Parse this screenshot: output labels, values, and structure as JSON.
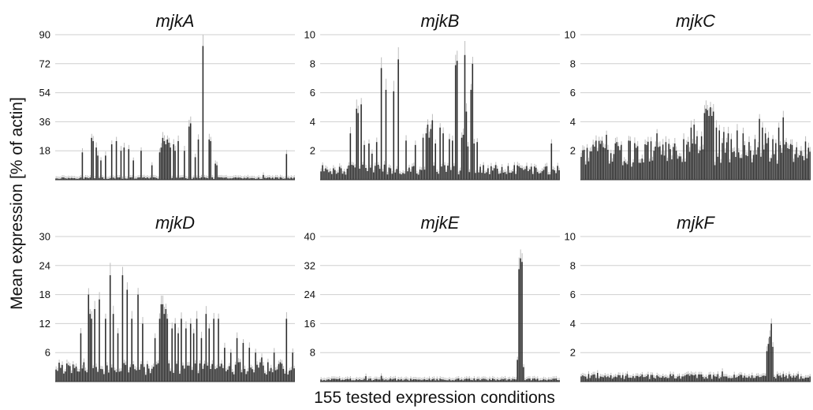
{
  "figure": {
    "ylabel": "Mean expression [% of actin]",
    "xlabel": "155 tested expression conditions",
    "n_conditions": 155
  },
  "colors": {
    "bar": "#2b2b2b",
    "errorbar": "#bdbdbd",
    "grid": "#cfcfcf"
  },
  "chart_data": [
    {
      "type": "bar",
      "title": "mjkA",
      "ylim": [
        0,
        90
      ],
      "yticks": [
        18,
        36,
        54,
        72,
        90
      ],
      "grid": true,
      "peaks": [
        {
          "at": 18,
          "value": 17
        },
        {
          "at": 24,
          "value": 26
        },
        {
          "at": 25,
          "value": 24
        },
        {
          "at": 27,
          "value": 20
        },
        {
          "at": 28,
          "value": 15
        },
        {
          "at": 30,
          "value": 12
        },
        {
          "at": 33,
          "value": 15
        },
        {
          "at": 37,
          "value": 22
        },
        {
          "at": 40,
          "value": 24
        },
        {
          "at": 43,
          "value": 18
        },
        {
          "at": 45,
          "value": 20
        },
        {
          "at": 48,
          "value": 19
        },
        {
          "at": 51,
          "value": 12
        },
        {
          "at": 56,
          "value": 18
        },
        {
          "at": 63,
          "value": 9
        },
        {
          "at": 68,
          "value": 17
        },
        {
          "at": 69,
          "value": 20
        },
        {
          "at": 70,
          "value": 26
        },
        {
          "at": 71,
          "value": 24
        },
        {
          "at": 72,
          "value": 22
        },
        {
          "at": 73,
          "value": 25
        },
        {
          "at": 74,
          "value": 23
        },
        {
          "at": 75,
          "value": 20
        },
        {
          "at": 77,
          "value": 22
        },
        {
          "at": 78,
          "value": 18
        },
        {
          "at": 80,
          "value": 24
        },
        {
          "at": 84,
          "value": 18
        },
        {
          "at": 87,
          "value": 33
        },
        {
          "at": 88,
          "value": 35
        },
        {
          "at": 91,
          "value": 14
        },
        {
          "at": 93,
          "value": 25
        },
        {
          "at": 96,
          "value": 83
        },
        {
          "at": 100,
          "value": 25
        },
        {
          "at": 101,
          "value": 24
        },
        {
          "at": 104,
          "value": 10
        },
        {
          "at": 105,
          "value": 9
        },
        {
          "at": 135,
          "value": 3
        },
        {
          "at": 150,
          "value": 16
        }
      ]
    },
    {
      "type": "bar",
      "title": "mjkB",
      "ylim": [
        0,
        10
      ],
      "yticks": [
        2,
        4,
        6,
        8,
        10
      ],
      "grid": true,
      "peaks": [
        {
          "at": 20,
          "value": 3.2
        },
        {
          "at": 24,
          "value": 4.9
        },
        {
          "at": 25,
          "value": 4.6
        },
        {
          "at": 27,
          "value": 5.2
        },
        {
          "at": 29,
          "value": 2.4
        },
        {
          "at": 32,
          "value": 2.5
        },
        {
          "at": 34,
          "value": 1.8
        },
        {
          "at": 37,
          "value": 2.6
        },
        {
          "at": 40,
          "value": 7.7
        },
        {
          "at": 43,
          "value": 6.2
        },
        {
          "at": 48,
          "value": 6.1
        },
        {
          "at": 51,
          "value": 8.3
        },
        {
          "at": 56,
          "value": 2.7
        },
        {
          "at": 62,
          "value": 2.4
        },
        {
          "at": 67,
          "value": 2.9
        },
        {
          "at": 69,
          "value": 3.2
        },
        {
          "at": 70,
          "value": 3.8
        },
        {
          "at": 71,
          "value": 2.9
        },
        {
          "at": 72,
          "value": 3.5
        },
        {
          "at": 73,
          "value": 4.1
        },
        {
          "at": 75,
          "value": 2.5
        },
        {
          "at": 78,
          "value": 3.6
        },
        {
          "at": 80,
          "value": 3.2
        },
        {
          "at": 84,
          "value": 2.8
        },
        {
          "at": 86,
          "value": 2.7
        },
        {
          "at": 88,
          "value": 7.9
        },
        {
          "at": 89,
          "value": 8.2
        },
        {
          "at": 92,
          "value": 2.9
        },
        {
          "at": 93,
          "value": 3.1
        },
        {
          "at": 94,
          "value": 8.6
        },
        {
          "at": 95,
          "value": 4.7
        },
        {
          "at": 96,
          "value": 2.3
        },
        {
          "at": 98,
          "value": 6.2
        },
        {
          "at": 99,
          "value": 8.0
        },
        {
          "at": 100,
          "value": 2.5
        },
        {
          "at": 102,
          "value": 2.6
        },
        {
          "at": 150,
          "value": 2.5
        }
      ]
    },
    {
      "type": "bar",
      "title": "mjkC",
      "ylim": [
        0,
        10
      ],
      "yticks": [
        2,
        4,
        6,
        8,
        10
      ],
      "grid": true,
      "peaks": [
        {
          "at": 5,
          "value": 2.2
        },
        {
          "at": 18,
          "value": 3.1
        },
        {
          "at": 25,
          "value": 2.6
        },
        {
          "at": 33,
          "value": 2.7
        },
        {
          "at": 38,
          "value": 2.2
        },
        {
          "at": 45,
          "value": 2.4
        },
        {
          "at": 52,
          "value": 3.2
        },
        {
          "at": 58,
          "value": 2.6
        },
        {
          "at": 64,
          "value": 2.5
        },
        {
          "at": 70,
          "value": 2.8
        },
        {
          "at": 75,
          "value": 3.6
        },
        {
          "at": 77,
          "value": 3.8
        },
        {
          "at": 79,
          "value": 3.0
        },
        {
          "at": 82,
          "value": 3.0
        },
        {
          "at": 84,
          "value": 4.6
        },
        {
          "at": 85,
          "value": 4.9
        },
        {
          "at": 86,
          "value": 4.8
        },
        {
          "at": 87,
          "value": 4.4
        },
        {
          "at": 88,
          "value": 5.0
        },
        {
          "at": 89,
          "value": 4.4
        },
        {
          "at": 90,
          "value": 4.7
        },
        {
          "at": 92,
          "value": 3.6
        },
        {
          "at": 94,
          "value": 3.4
        },
        {
          "at": 97,
          "value": 3.3
        },
        {
          "at": 100,
          "value": 3.2
        },
        {
          "at": 102,
          "value": 2.8
        },
        {
          "at": 106,
          "value": 3.4
        },
        {
          "at": 110,
          "value": 3.2
        },
        {
          "at": 114,
          "value": 2.6
        },
        {
          "at": 118,
          "value": 2.8
        },
        {
          "at": 121,
          "value": 4.2
        },
        {
          "at": 123,
          "value": 3.6
        },
        {
          "at": 125,
          "value": 3.2
        },
        {
          "at": 127,
          "value": 2.9
        },
        {
          "at": 130,
          "value": 2.8
        },
        {
          "at": 134,
          "value": 3.6
        },
        {
          "at": 137,
          "value": 4.3
        },
        {
          "at": 139,
          "value": 2.6
        },
        {
          "at": 143,
          "value": 2.4
        }
      ]
    },
    {
      "type": "bar",
      "title": "mjkD",
      "ylim": [
        0,
        30
      ],
      "yticks": [
        6,
        12,
        18,
        24,
        30
      ],
      "grid": true,
      "peaks": [
        {
          "at": 17,
          "value": 10
        },
        {
          "at": 19,
          "value": 4
        },
        {
          "at": 22,
          "value": 18
        },
        {
          "at": 23,
          "value": 14
        },
        {
          "at": 24,
          "value": 13
        },
        {
          "at": 26,
          "value": 15
        },
        {
          "at": 29,
          "value": 17
        },
        {
          "at": 33,
          "value": 13
        },
        {
          "at": 36,
          "value": 22
        },
        {
          "at": 38,
          "value": 14
        },
        {
          "at": 41,
          "value": 10
        },
        {
          "at": 44,
          "value": 22
        },
        {
          "at": 47,
          "value": 19
        },
        {
          "at": 50,
          "value": 13
        },
        {
          "at": 54,
          "value": 18
        },
        {
          "at": 57,
          "value": 12
        },
        {
          "at": 65,
          "value": 9
        },
        {
          "at": 68,
          "value": 13
        },
        {
          "at": 69,
          "value": 16
        },
        {
          "at": 70,
          "value": 16
        },
        {
          "at": 71,
          "value": 14
        },
        {
          "at": 72,
          "value": 15
        },
        {
          "at": 73,
          "value": 13
        },
        {
          "at": 76,
          "value": 11
        },
        {
          "at": 78,
          "value": 12
        },
        {
          "at": 80,
          "value": 10
        },
        {
          "at": 82,
          "value": 13
        },
        {
          "at": 85,
          "value": 11
        },
        {
          "at": 88,
          "value": 12
        },
        {
          "at": 90,
          "value": 10
        },
        {
          "at": 92,
          "value": 13
        },
        {
          "at": 95,
          "value": 9
        },
        {
          "at": 98,
          "value": 14
        },
        {
          "at": 100,
          "value": 11
        },
        {
          "at": 103,
          "value": 13
        },
        {
          "at": 106,
          "value": 13
        },
        {
          "at": 110,
          "value": 7
        },
        {
          "at": 114,
          "value": 6
        },
        {
          "at": 118,
          "value": 9
        },
        {
          "at": 122,
          "value": 8
        },
        {
          "at": 126,
          "value": 7
        },
        {
          "at": 130,
          "value": 6
        },
        {
          "at": 134,
          "value": 5
        },
        {
          "at": 138,
          "value": 4
        },
        {
          "at": 142,
          "value": 6
        },
        {
          "at": 146,
          "value": 4
        },
        {
          "at": 150,
          "value": 13
        },
        {
          "at": 154,
          "value": 6
        }
      ]
    },
    {
      "type": "bar",
      "title": "mjkE",
      "ylim": [
        0,
        40
      ],
      "yticks": [
        8,
        16,
        24,
        32,
        40
      ],
      "grid": true,
      "peaks": [
        {
          "at": 30,
          "value": 1.5
        },
        {
          "at": 40,
          "value": 1.6
        },
        {
          "at": 128,
          "value": 6
        },
        {
          "at": 129,
          "value": 31
        },
        {
          "at": 130,
          "value": 34
        },
        {
          "at": 131,
          "value": 33
        },
        {
          "at": 132,
          "value": 4
        }
      ]
    },
    {
      "type": "bar",
      "title": "mjkF",
      "ylim": [
        0,
        10
      ],
      "yticks": [
        2,
        4,
        6,
        8,
        10
      ],
      "grid": true,
      "peaks": [
        {
          "at": 12,
          "value": 0.6
        },
        {
          "at": 96,
          "value": 0.7
        },
        {
          "at": 126,
          "value": 2.1
        },
        {
          "at": 127,
          "value": 2.6
        },
        {
          "at": 128,
          "value": 3.1
        },
        {
          "at": 129,
          "value": 4.0
        },
        {
          "at": 130,
          "value": 2.4
        }
      ]
    }
  ]
}
